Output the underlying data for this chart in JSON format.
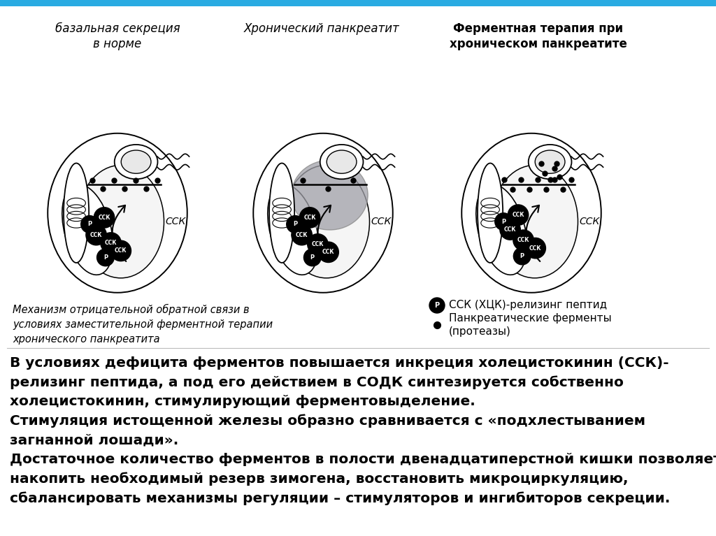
{
  "background_color": "#ffffff",
  "top_bar_color": "#29ABE2",
  "title1": "базальная секреция\nв норме",
  "title2": "Хронический панкреатит",
  "title3": "Ферментная терапия при\nхроническом панкреатите",
  "caption_left": "Механизм отрицательной обратной связи в\nусловиях заместительной ферментной терапии\nхронического панкреатита",
  "legend_p_text": "ССК (ХЦК)-релизинг пептид",
  "legend_dot_text": "Панкреатические ферменты\n(протеазы)",
  "body_text": "В условиях дефицита ферментов повышается инкреция холецистокинин (ССК)-\nрелизинг пептида, а под его действием в СОДК синтезируется собственно\nхолецистокинин, стимулирующий ферментовыделение.\nСтимуляция истощенной железы образно сравнивается с «подхлестыванием\nзагнанной лошади».\nДостаточное количество ферментов в полости двенадцатиперстной кишки позволяет\nнакопить необходимый резерв зимогена, восстановить микроциркуляцию,\nсбалансировать механизмы регуляции – стимуляторов и ингибиторов секреции.",
  "body_fontsize": 14.5,
  "title1_fontsize": 12,
  "title2_fontsize": 12,
  "title3_fontsize": 12,
  "caption_fontsize": 10.5,
  "legend_fontsize": 11,
  "cck_label_fontsize": 10
}
